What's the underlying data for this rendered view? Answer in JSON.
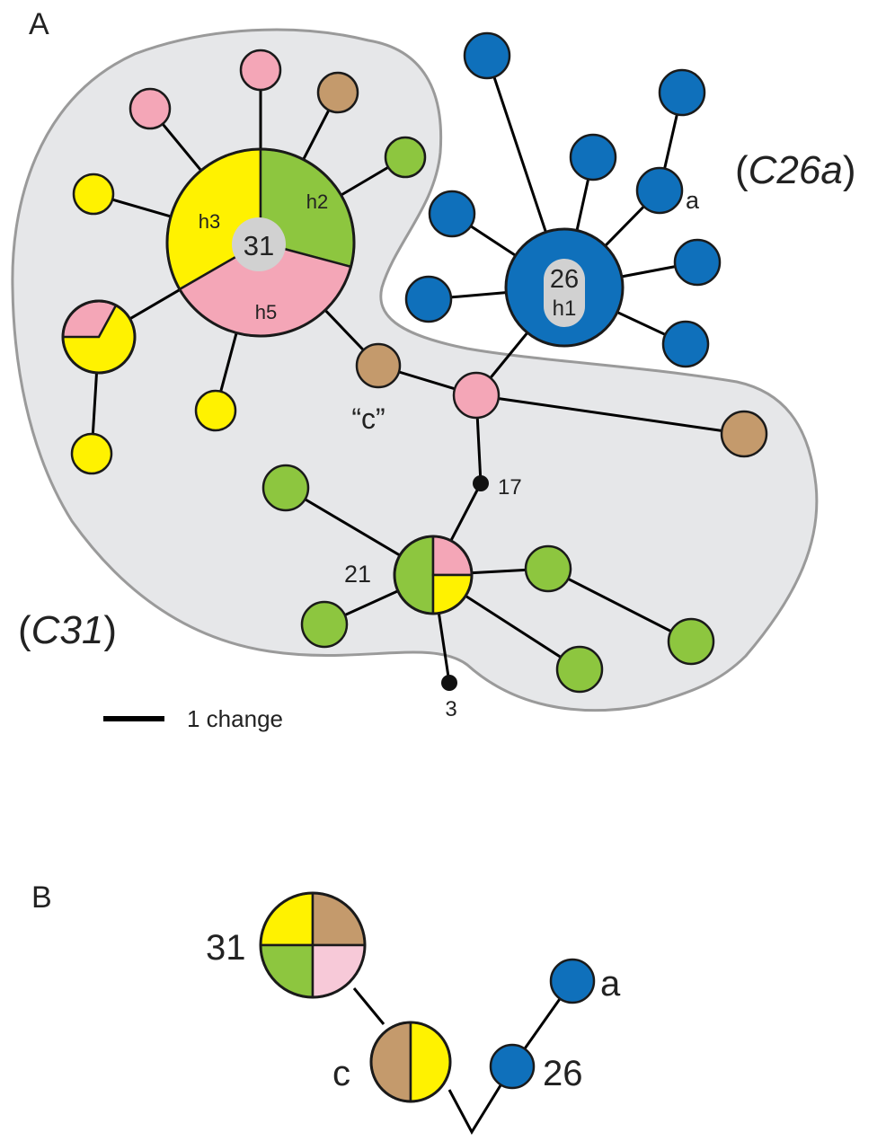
{
  "colors": {
    "yellow": "#fff200",
    "green": "#8dc63f",
    "pink": "#f4a6b7",
    "light_pink": "#f7c9d8",
    "brown": "#c49a6c",
    "blue": "#0f70bb",
    "label_bubble": "#d1d1d1",
    "hull_fill": "#e6e7e9",
    "hull_stroke": "#9a9a9a",
    "black_node": "#111111"
  },
  "panel_a": {
    "label": "A",
    "group_c26a": {
      "open": "(",
      "name": "C26a",
      "close": ")"
    },
    "group_c31": {
      "open": "(",
      "name": "C31",
      "close": ")"
    },
    "hub_31": {
      "count": "31",
      "h3": "h3",
      "h2": "h2",
      "h5": "h5"
    },
    "hub_26": {
      "count": "26",
      "h1": "h1"
    },
    "node_a": "a",
    "node_c": "“c”",
    "node_17": "17",
    "hub_21": "21",
    "node_3": "3",
    "scale_bar": "1 change"
  },
  "panel_b": {
    "label": "B",
    "node_31": "31",
    "node_c": "c",
    "node_26": "26",
    "node_a": "a"
  }
}
